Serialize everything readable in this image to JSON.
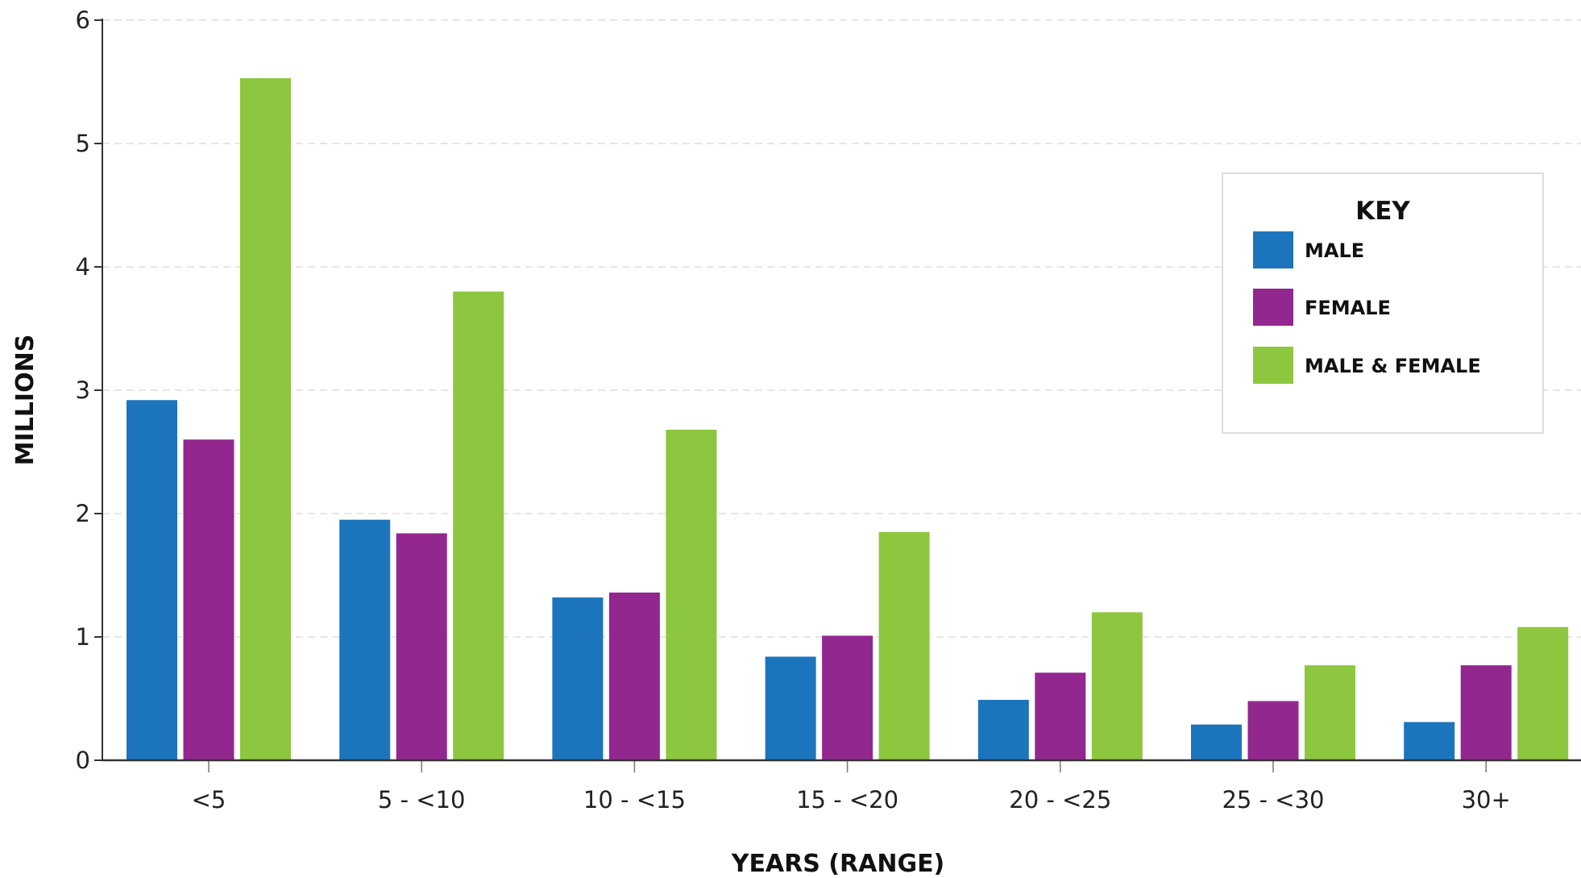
{
  "chart_data": {
    "type": "bar",
    "title": "",
    "xlabel": "YEARS (RANGE)",
    "ylabel": "MILLIONS",
    "ylim": [
      0,
      6
    ],
    "yticks": [
      "0",
      "1",
      "2",
      "3",
      "4",
      "5",
      "6"
    ],
    "grid": true,
    "legend_placement": "top-right",
    "legend_title": "KEY",
    "categories": [
      "<5",
      "5 - <10",
      "10 - <15",
      "15 - <20",
      "20 - <25",
      "25 - <30",
      "30+"
    ],
    "series": [
      {
        "name": "MALE",
        "color": "#1c75bc",
        "values": [
          2.92,
          1.95,
          1.32,
          0.84,
          0.49,
          0.29,
          0.31
        ]
      },
      {
        "name": "FEMALE",
        "color": "#92278f",
        "values": [
          2.6,
          1.84,
          1.36,
          1.01,
          0.71,
          0.48,
          0.77
        ]
      },
      {
        "name": "MALE & FEMALE",
        "color": "#8dc63f",
        "values": [
          5.53,
          3.8,
          2.68,
          1.85,
          1.2,
          0.77,
          1.08
        ]
      }
    ]
  }
}
